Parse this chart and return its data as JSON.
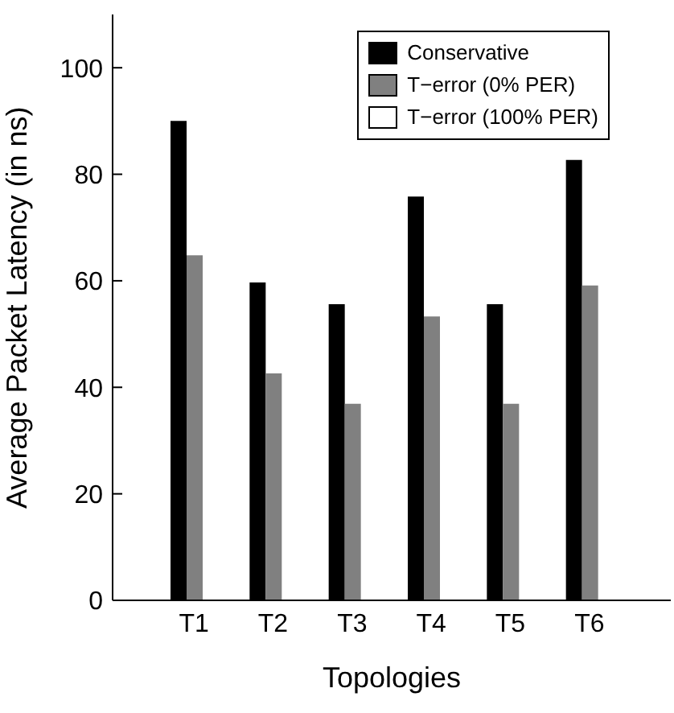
{
  "chart_data": {
    "type": "bar",
    "xlabel": "Topologies",
    "ylabel": "Average Packet Latency (in ns)",
    "categories": [
      "T1",
      "T2",
      "T3",
      "T4",
      "T5",
      "T6"
    ],
    "series": [
      {
        "name": "Conservative",
        "color": "#000000",
        "values": [
          90,
          59.7,
          55.6,
          75.8,
          55.6,
          82.7
        ]
      },
      {
        "name": "T−error (0% PER)",
        "color": "#808080",
        "values": [
          64.8,
          42.6,
          36.9,
          53.3,
          36.9,
          59.1
        ]
      },
      {
        "name": "T−error (100% PER)",
        "color": "#ffffff",
        "values": [
          0,
          0,
          0,
          0,
          0,
          0
        ]
      }
    ],
    "ylim": [
      0,
      110
    ],
    "yticks": [
      0,
      20,
      40,
      60,
      80,
      100
    ],
    "grid": false,
    "legend": "top right"
  }
}
